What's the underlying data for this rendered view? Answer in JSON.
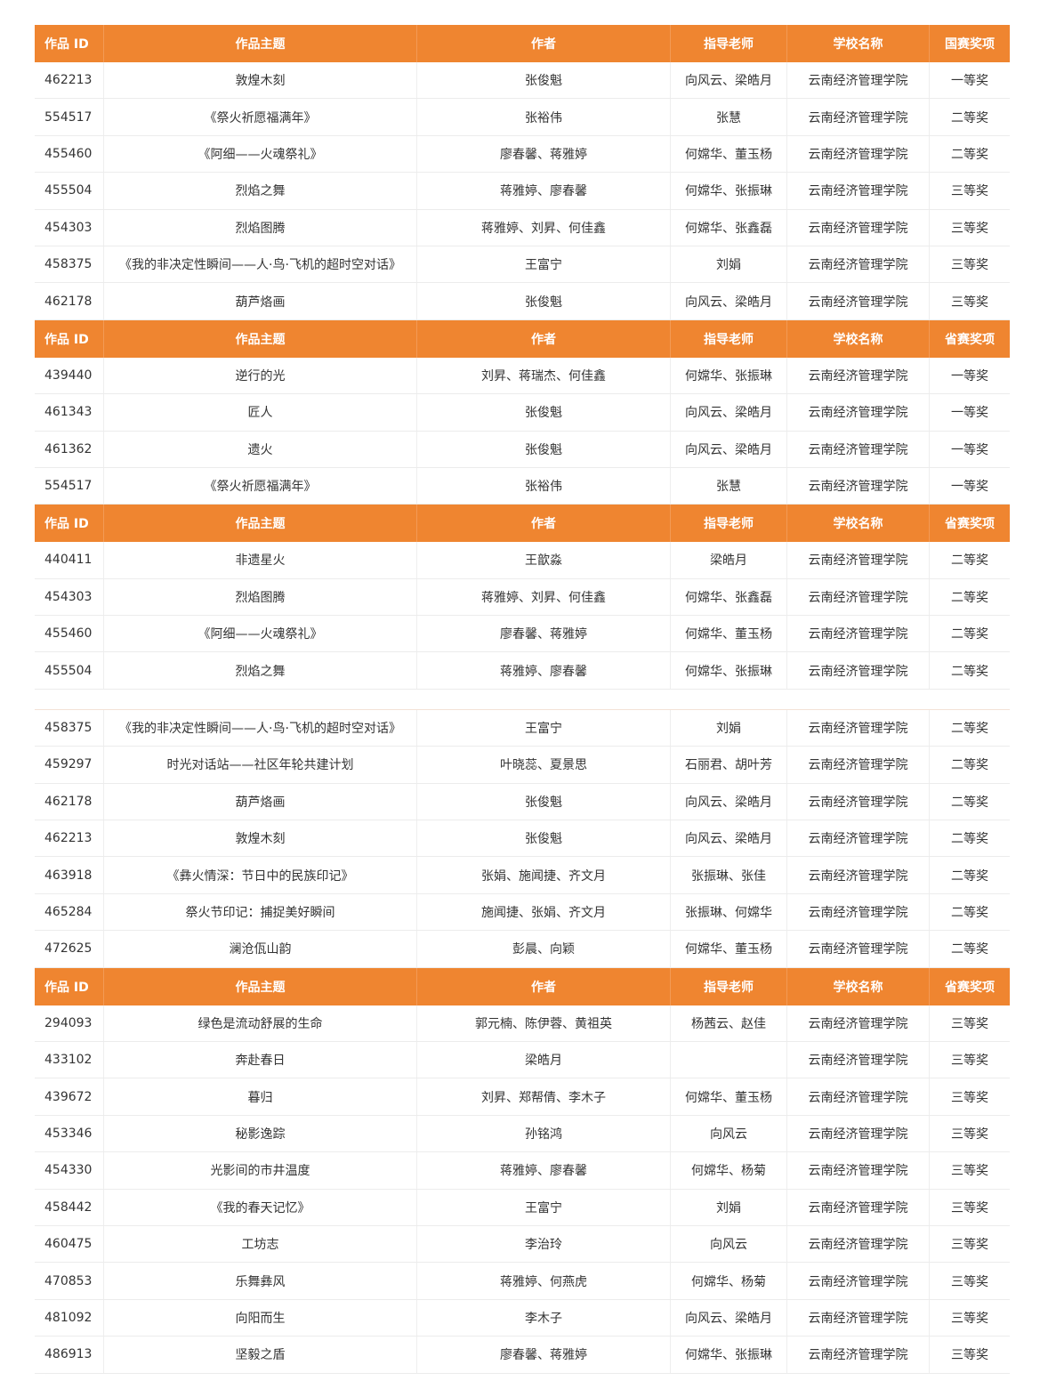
{
  "colors": {
    "header_bg": "#ef8530",
    "header_text": "#ffffff"
  },
  "segments": [
    {
      "header": [
        "作品 ID",
        "作品主题",
        "作者",
        "指导老师",
        "学校名称",
        "国赛奖项"
      ],
      "rows": [
        [
          "462213",
          "敦煌木刻",
          "张俊魁",
          "向风云、梁皓月",
          "云南经济管理学院",
          "一等奖"
        ],
        [
          "554517",
          "《祭火祈愿福满年》",
          "张裕伟",
          "张慧",
          "云南经济管理学院",
          "二等奖"
        ],
        [
          "455460",
          "《阿细——火魂祭礼》",
          "廖春馨、蒋雅婷",
          "何嫦华、董玉杨",
          "云南经济管理学院",
          "二等奖"
        ],
        [
          "455504",
          "烈焰之舞",
          "蒋雅婷、廖春馨",
          "何嫦华、张振琳",
          "云南经济管理学院",
          "三等奖"
        ],
        [
          "454303",
          "烈焰图腾",
          "蒋雅婷、刘昇、何佳鑫",
          "何嫦华、张鑫磊",
          "云南经济管理学院",
          "三等奖"
        ],
        [
          "458375",
          "《我的非决定性瞬间——人·鸟·飞机的超时空对话》",
          "王富宁",
          "刘娟",
          "云南经济管理学院",
          "三等奖"
        ],
        [
          "462178",
          "葫芦烙画",
          "张俊魁",
          "向风云、梁皓月",
          "云南经济管理学院",
          "三等奖"
        ]
      ]
    },
    {
      "header": [
        "作品 ID",
        "作品主题",
        "作者",
        "指导老师",
        "学校名称",
        "省赛奖项"
      ],
      "rows": [
        [
          "439440",
          "逆行的光",
          "刘昇、蒋瑞杰、何佳鑫",
          "何嫦华、张振琳",
          "云南经济管理学院",
          "一等奖"
        ],
        [
          "461343",
          "匠人",
          "张俊魁",
          "向风云、梁皓月",
          "云南经济管理学院",
          "一等奖"
        ],
        [
          "461362",
          "遗火",
          "张俊魁",
          "向风云、梁皓月",
          "云南经济管理学院",
          "一等奖"
        ],
        [
          "554517",
          "《祭火祈愿福满年》",
          "张裕伟",
          "张慧",
          "云南经济管理学院",
          "一等奖"
        ]
      ]
    },
    {
      "header": [
        "作品 ID",
        "作品主题",
        "作者",
        "指导老师",
        "学校名称",
        "省赛奖项"
      ],
      "rows": [
        [
          "440411",
          "非遗星火",
          "王歆淼",
          "梁皓月",
          "云南经济管理学院",
          "二等奖"
        ],
        [
          "454303",
          "烈焰图腾",
          "蒋雅婷、刘昇、何佳鑫",
          "何嫦华、张鑫磊",
          "云南经济管理学院",
          "二等奖"
        ],
        [
          "455460",
          "《阿细——火魂祭礼》",
          "廖春馨、蒋雅婷",
          "何嫦华、董玉杨",
          "云南经济管理学院",
          "二等奖"
        ],
        [
          "455504",
          "烈焰之舞",
          "蒋雅婷、廖春馨",
          "何嫦华、张振琳",
          "云南经济管理学院",
          "二等奖"
        ]
      ]
    },
    {
      "header": null,
      "rows": [
        [
          "458375",
          "《我的非决定性瞬间——人·鸟·飞机的超时空对话》",
          "王富宁",
          "刘娟",
          "云南经济管理学院",
          "二等奖"
        ],
        [
          "459297",
          "时光对话站——社区年轮共建计划",
          "叶晓蕊、夏景思",
          "石丽君、胡叶芳",
          "云南经济管理学院",
          "二等奖"
        ],
        [
          "462178",
          "葫芦烙画",
          "张俊魁",
          "向风云、梁皓月",
          "云南经济管理学院",
          "二等奖"
        ],
        [
          "462213",
          "敦煌木刻",
          "张俊魁",
          "向风云、梁皓月",
          "云南经济管理学院",
          "二等奖"
        ],
        [
          "463918",
          "《彝火情深：节日中的民族印记》",
          "张娟、施闻捷、齐文月",
          "张振琳、张佳",
          "云南经济管理学院",
          "二等奖"
        ],
        [
          "465284",
          "祭火节印记：捕捉美好瞬间",
          "施闻捷、张娟、齐文月",
          "张振琳、何嫦华",
          "云南经济管理学院",
          "二等奖"
        ],
        [
          "472625",
          "澜沧佤山韵",
          "彭晨、向颖",
          "何嫦华、董玉杨",
          "云南经济管理学院",
          "二等奖"
        ]
      ]
    },
    {
      "header": [
        "作品 ID",
        "作品主题",
        "作者",
        "指导老师",
        "学校名称",
        "省赛奖项"
      ],
      "rows": [
        [
          "294093",
          "绿色是流动舒展的生命",
          "郭元楠、陈伊蓉、黄祖英",
          "杨茜云、赵佳",
          "云南经济管理学院",
          "三等奖"
        ],
        [
          "433102",
          "奔赴春日",
          "梁皓月",
          "",
          "云南经济管理学院",
          "三等奖"
        ],
        [
          "439672",
          "暮归",
          "刘昇、郑帮倩、李木子",
          "何嫦华、董玉杨",
          "云南经济管理学院",
          "三等奖"
        ],
        [
          "453346",
          "秘影逸踪",
          "孙铭鸿",
          "向风云",
          "云南经济管理学院",
          "三等奖"
        ],
        [
          "454330",
          "光影间的市井温度",
          "蒋雅婷、廖春馨",
          "何嫦华、杨菊",
          "云南经济管理学院",
          "三等奖"
        ],
        [
          "458442",
          "《我的春天记忆》",
          "王富宁",
          "刘娟",
          "云南经济管理学院",
          "三等奖"
        ],
        [
          "460475",
          "工坊志",
          "李治玲",
          "向风云",
          "云南经济管理学院",
          "三等奖"
        ],
        [
          "470853",
          "乐舞彝风",
          "蒋雅婷、何燕虎",
          "何嫦华、杨菊",
          "云南经济管理学院",
          "三等奖"
        ],
        [
          "481092",
          "向阳而生",
          "李木子",
          "向风云、梁皓月",
          "云南经济管理学院",
          "三等奖"
        ],
        [
          "486913",
          "坚毅之盾",
          "廖春馨、蒋雅婷",
          "何嫦华、张振琳",
          "云南经济管理学院",
          "三等奖"
        ]
      ]
    }
  ]
}
